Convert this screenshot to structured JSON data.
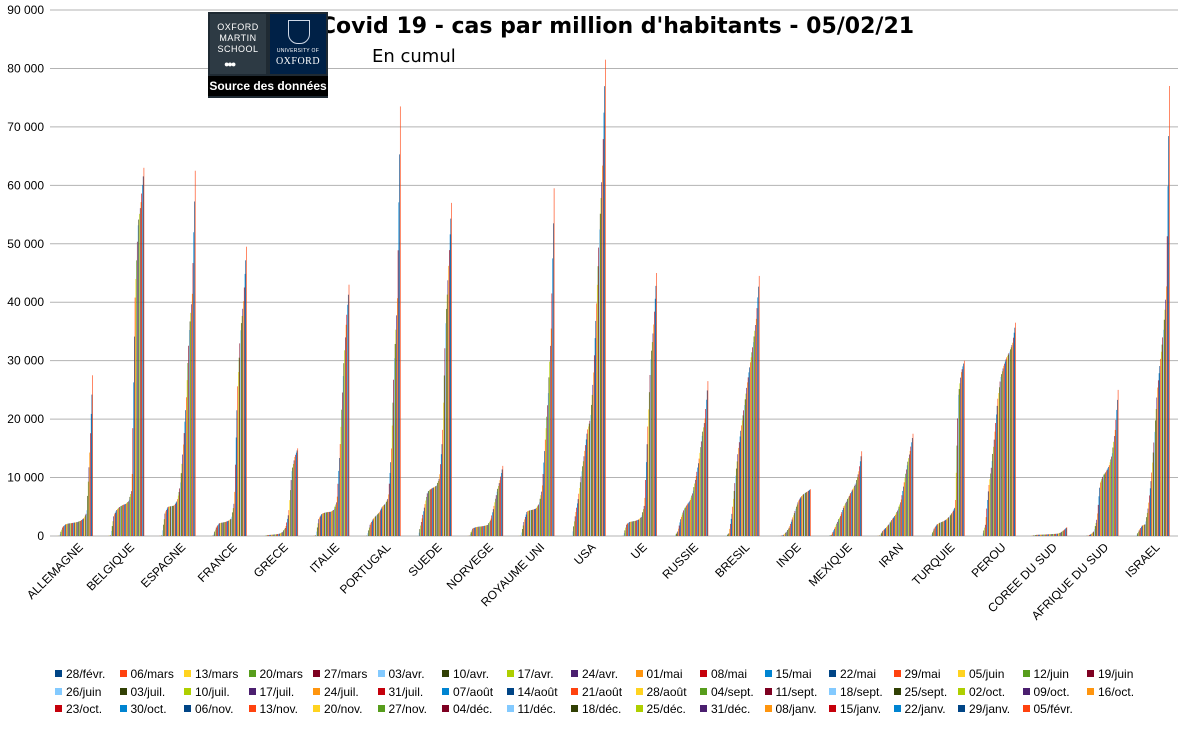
{
  "chart_data": {
    "type": "bar",
    "title": "Covid 19 - cas par million d'habitants - 05/02/21",
    "subtitle": "En cumul",
    "source_label": "Source des données",
    "logos": {
      "oxford_martin": "OXFORD MARTIN SCHOOL",
      "university_small": "UNIVERSITY OF",
      "university": "OXFORD"
    },
    "ylim": [
      0,
      90000
    ],
    "yticks": [
      "0",
      "10 000",
      "20 000",
      "30 000",
      "40 000",
      "50 000",
      "60 000",
      "70 000",
      "80 000",
      "90 000"
    ],
    "grid": true,
    "legend_position": "bottom",
    "categories": [
      "ALLEMAGNE",
      "BELGIQUE",
      "ESPAGNE",
      "FRANCE",
      "GRECE",
      "ITALIE",
      "PORTUGAL",
      "SUEDE",
      "NORVEGE",
      "ROYAUME UNI",
      "USA",
      "UE",
      "RUSSIE",
      "BRESIL",
      "INDE",
      "MEXIQUE",
      "IRAN",
      "TURQUIE",
      "PEROU",
      "COREE DU SUD",
      "AFRIQUE DU SUD",
      "ISRAEL"
    ],
    "series_names": [
      "28/févr.",
      "06/mars",
      "13/mars",
      "20/mars",
      "27/mars",
      "03/avr.",
      "10/avr.",
      "17/avr.",
      "24/avr.",
      "01/mai",
      "08/mai",
      "15/mai",
      "22/mai",
      "29/mai",
      "05/juin",
      "12/juin",
      "19/juin",
      "26/juin",
      "03/juil.",
      "10/juil.",
      "17/juil.",
      "24/juil.",
      "31/juil.",
      "07/août",
      "14/août",
      "21/août",
      "28/août",
      "04/sept.",
      "11/sept.",
      "18/sept.",
      "25/sept.",
      "02/oct.",
      "09/oct.",
      "16/oct.",
      "23/oct.",
      "30/oct.",
      "06/nov.",
      "13/nov.",
      "20/nov.",
      "27/nov.",
      "04/déc.",
      "11/déc.",
      "18/déc.",
      "25/déc.",
      "31/déc.",
      "08/janv.",
      "15/janv.",
      "22/janv.",
      "29/janv.",
      "05/févr."
    ],
    "series_colors": [
      "#004586",
      "#ff420e",
      "#ffd320",
      "#579d1c",
      "#7e0021",
      "#83caff",
      "#314004",
      "#aecf00",
      "#4b1f6f",
      "#ff950e",
      "#c5000b",
      "#0084d1"
    ],
    "checkpoints": {
      "ALLEMAGNE": [
        0,
        50,
        1500,
        2000,
        2150,
        2200,
        2300,
        2400,
        2600,
        3000,
        4000,
        14000,
        27500
      ],
      "BELGIQUE": [
        0,
        100,
        3500,
        4500,
        5000,
        5300,
        5500,
        6000,
        8000,
        40000,
        53000,
        57000,
        63000
      ],
      "ESPAGNE": [
        0,
        100,
        4000,
        5000,
        5100,
        5200,
        6000,
        8500,
        15000,
        23000,
        35000,
        41000,
        62500
      ],
      "FRANCE": [
        0,
        100,
        1500,
        2200,
        2300,
        2400,
        2600,
        3000,
        6000,
        25000,
        35000,
        40000,
        49500
      ],
      "GRECE": [
        0,
        5,
        150,
        200,
        250,
        300,
        400,
        700,
        1500,
        4000,
        11000,
        13500,
        15000
      ],
      "ITALIE": [
        0,
        100,
        3000,
        3800,
        4000,
        4100,
        4150,
        4500,
        6000,
        15000,
        27000,
        36000,
        43000
      ],
      "PORTUGAL": [
        0,
        50,
        2000,
        2900,
        3500,
        4000,
        5000,
        5500,
        6500,
        14000,
        30000,
        40000,
        73500
      ],
      "SUEDE": [
        0,
        10,
        2500,
        5000,
        7500,
        8000,
        8300,
        8600,
        10000,
        17000,
        36000,
        46000,
        57000
      ],
      "NORVEGE": [
        0,
        50,
        1300,
        1500,
        1600,
        1650,
        1750,
        1900,
        2800,
        5000,
        7500,
        9500,
        12000
      ],
      "ROYAUME UNI": [
        0,
        50,
        2500,
        4200,
        4400,
        4500,
        4700,
        5500,
        8000,
        16000,
        24000,
        35000,
        59500
      ],
      "USA": [
        0,
        10,
        3500,
        6500,
        10500,
        14000,
        18000,
        20000,
        27000,
        39000,
        52000,
        63000,
        81500
      ],
      "UE": [
        0,
        50,
        2000,
        2400,
        2500,
        2600,
        2800,
        3300,
        5500,
        18000,
        30000,
        36000,
        45000
      ],
      "RUSSIE": [
        0,
        0,
        800,
        3000,
        4500,
        5300,
        6000,
        7500,
        10000,
        13000,
        17000,
        20000,
        26500
      ],
      "BRESIL": [
        0,
        0,
        500,
        4000,
        9500,
        14500,
        18500,
        22000,
        26000,
        29500,
        33000,
        37000,
        44500
      ],
      "INDE": [
        0,
        0,
        10,
        150,
        700,
        1500,
        3000,
        4500,
        6000,
        6800,
        7300,
        7600,
        8000
      ],
      "MEXIQUE": [
        0,
        0,
        200,
        1300,
        2500,
        3500,
        5000,
        6000,
        7000,
        8000,
        9000,
        11000,
        14500
      ],
      "IRAN": [
        0,
        80,
        900,
        1400,
        2000,
        2800,
        3500,
        4500,
        6000,
        9000,
        12000,
        14500,
        17500
      ],
      "TURQUIE": [
        0,
        0,
        1300,
        2000,
        2300,
        2500,
        2800,
        3300,
        4000,
        5000,
        24000,
        28000,
        30000
      ],
      "PEROU": [
        0,
        0,
        2000,
        8000,
        12000,
        17000,
        23000,
        27000,
        29000,
        30500,
        31500,
        33000,
        36500
      ],
      "COREE DU SUD": [
        0,
        100,
        200,
        220,
        240,
        260,
        300,
        330,
        360,
        400,
        600,
        1000,
        1500
      ],
      "AFRIQUE DU SUD": [
        0,
        0,
        50,
        300,
        800,
        3000,
        9000,
        10300,
        11000,
        12000,
        14000,
        18000,
        25000
      ],
      "ISRAEL": [
        0,
        0,
        1000,
        1800,
        2000,
        5000,
        10000,
        17000,
        25000,
        30000,
        35000,
        42000,
        77000
      ]
    }
  }
}
